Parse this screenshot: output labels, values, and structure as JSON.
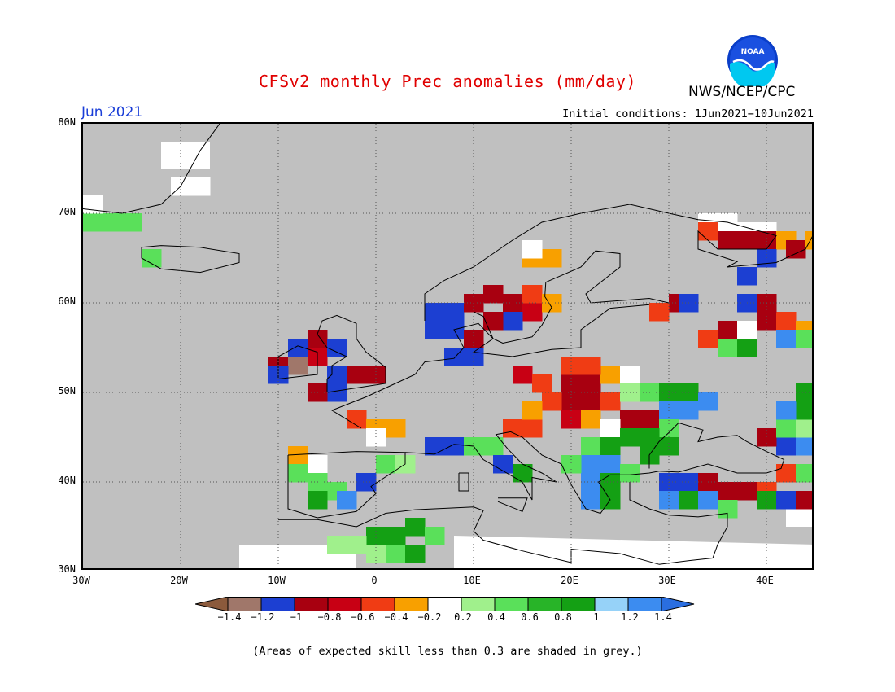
{
  "title": "CFSv2 monthly Prec anomalies (mm/day)",
  "agency": "NWS/NCEP/CPC",
  "logo_text": "NOAA",
  "month": "Jun 2021",
  "initial_conditions": "Initial conditions: 1Jun2021−10Jun2021",
  "footnote": "(Areas of expected skill less than 0.3 are shaded in grey.)",
  "map": {
    "lat_range": [
      30,
      80
    ],
    "lon_range": [
      -30,
      45
    ],
    "lat_labels": [
      "80N",
      "70N",
      "60N",
      "50N",
      "40N",
      "30N"
    ],
    "lon_labels": [
      "30W",
      "20W",
      "10W",
      "0",
      "10E",
      "20E",
      "30E",
      "40E"
    ],
    "background_color": "#c0c0c0",
    "grid": "dotted"
  },
  "colorbar": {
    "labels": [
      "−1.4",
      "−1.2",
      "−1",
      "−0.8",
      "−0.6",
      "−0.4",
      "−0.2",
      "0.2",
      "0.4",
      "0.6",
      "0.8",
      "1",
      "1.2",
      "1.4"
    ],
    "colors": [
      "#8b5a3c",
      "#a0776a",
      "#1c3fd2",
      "#a80010",
      "#c80014",
      "#f03c14",
      "#f8a000",
      "#ffffff",
      "#a0f08c",
      "#5ae05a",
      "#28b428",
      "#14a014",
      "#96d2f8",
      "#3c8cf0",
      "#2a6ee0"
    ]
  },
  "chart_data": {
    "type": "heatmap",
    "title": "CFSv2 monthly Prec anomalies (mm/day)",
    "units": "mm/day",
    "period": "Jun 2021",
    "cells": [
      {
        "lon": -29,
        "lat": 69,
        "v": 0.5
      },
      {
        "lon": -27,
        "lat": 69,
        "v": 0.5
      },
      {
        "lon": -25,
        "lat": 69,
        "v": 0.5
      },
      {
        "lon": -29,
        "lat": 71,
        "v": 0.0
      },
      {
        "lon": -20,
        "lat": 73,
        "v": 0.0
      },
      {
        "lon": -18,
        "lat": 73,
        "v": 0.0
      },
      {
        "lon": -23,
        "lat": 65,
        "v": 0.5
      },
      {
        "lon": -10,
        "lat": 53,
        "v": -1.0
      },
      {
        "lon": -8,
        "lat": 53,
        "v": -1.3
      },
      {
        "lon": -10,
        "lat": 52,
        "v": -1.1
      },
      {
        "lon": -8,
        "lat": 55,
        "v": -1.1
      },
      {
        "lon": -6,
        "lat": 56,
        "v": -0.9
      },
      {
        "lon": -6,
        "lat": 54,
        "v": -0.7
      },
      {
        "lon": -4,
        "lat": 55,
        "v": -1.1
      },
      {
        "lon": -4,
        "lat": 52,
        "v": -1.1
      },
      {
        "lon": -2,
        "lat": 52,
        "v": -0.9
      },
      {
        "lon": 0,
        "lat": 52,
        "v": -0.9
      },
      {
        "lon": -4,
        "lat": 50,
        "v": -1.1
      },
      {
        "lon": -6,
        "lat": 50,
        "v": -0.9
      },
      {
        "lon": -2,
        "lat": 47,
        "v": -0.6
      },
      {
        "lon": 0,
        "lat": 46,
        "v": -0.4
      },
      {
        "lon": 2,
        "lat": 46,
        "v": -0.4
      },
      {
        "lon": 0,
        "lat": 45,
        "v": 0.0
      },
      {
        "lon": -8,
        "lat": 43,
        "v": -0.4
      },
      {
        "lon": -6,
        "lat": 42,
        "v": 0.0
      },
      {
        "lon": -8,
        "lat": 41,
        "v": 0.5
      },
      {
        "lon": -6,
        "lat": 40,
        "v": 0.5
      },
      {
        "lon": -4,
        "lat": 39,
        "v": 0.5
      },
      {
        "lon": -6,
        "lat": 38,
        "v": 0.9
      },
      {
        "lon": -3,
        "lat": 38,
        "v": 1.2
      },
      {
        "lon": -1,
        "lat": 40,
        "v": -1.1
      },
      {
        "lon": 1,
        "lat": 42,
        "v": 0.5
      },
      {
        "lon": 3,
        "lat": 42,
        "v": 0.3
      },
      {
        "lon": 0,
        "lat": 34,
        "v": 0.9
      },
      {
        "lon": 2,
        "lat": 34,
        "v": 0.9
      },
      {
        "lon": 4,
        "lat": 35,
        "v": 0.9
      },
      {
        "lon": 6,
        "lat": 34,
        "v": 0.5
      },
      {
        "lon": -4,
        "lat": 33,
        "v": 0.3
      },
      {
        "lon": -2,
        "lat": 33,
        "v": 0.3
      },
      {
        "lon": 0,
        "lat": 32,
        "v": 0.3
      },
      {
        "lon": 2,
        "lat": 32,
        "v": 0.5
      },
      {
        "lon": 4,
        "lat": 32,
        "v": 0.9
      },
      {
        "lon": 6,
        "lat": 44,
        "v": -1.1
      },
      {
        "lon": 8,
        "lat": 44,
        "v": -1.1
      },
      {
        "lon": 10,
        "lat": 44,
        "v": 0.5
      },
      {
        "lon": 12,
        "lat": 44,
        "v": 0.5
      },
      {
        "lon": 13,
        "lat": 42,
        "v": -1.1
      },
      {
        "lon": 15,
        "lat": 41,
        "v": 0.9
      },
      {
        "lon": 14,
        "lat": 46,
        "v": -0.6
      },
      {
        "lon": 16,
        "lat": 46,
        "v": -0.6
      },
      {
        "lon": 6,
        "lat": 59,
        "v": -1.1
      },
      {
        "lon": 8,
        "lat": 59,
        "v": -1.1
      },
      {
        "lon": 6,
        "lat": 57,
        "v": -1.1
      },
      {
        "lon": 8,
        "lat": 57,
        "v": -1.1
      },
      {
        "lon": 10,
        "lat": 60,
        "v": -0.9
      },
      {
        "lon": 12,
        "lat": 61,
        "v": -0.9
      },
      {
        "lon": 14,
        "lat": 60,
        "v": -0.9
      },
      {
        "lon": 16,
        "lat": 59,
        "v": -0.7
      },
      {
        "lon": 14,
        "lat": 58,
        "v": -1.1
      },
      {
        "lon": 12,
        "lat": 58,
        "v": -0.9
      },
      {
        "lon": 10,
        "lat": 56,
        "v": -0.9
      },
      {
        "lon": 8,
        "lat": 54,
        "v": -1.1
      },
      {
        "lon": 10,
        "lat": 54,
        "v": -1.1
      },
      {
        "lon": 16,
        "lat": 61,
        "v": -0.6
      },
      {
        "lon": 18,
        "lat": 60,
        "v": -0.4
      },
      {
        "lon": 16,
        "lat": 65,
        "v": -0.4
      },
      {
        "lon": 18,
        "lat": 65,
        "v": -0.4
      },
      {
        "lon": 16,
        "lat": 66,
        "v": 0.0
      },
      {
        "lon": 15,
        "lat": 52,
        "v": -0.7
      },
      {
        "lon": 17,
        "lat": 51,
        "v": -0.6
      },
      {
        "lon": 20,
        "lat": 51,
        "v": -0.9
      },
      {
        "lon": 22,
        "lat": 51,
        "v": -0.9
      },
      {
        "lon": 20,
        "lat": 49,
        "v": -0.9
      },
      {
        "lon": 22,
        "lat": 49,
        "v": -0.9
      },
      {
        "lon": 24,
        "lat": 49,
        "v": -0.6
      },
      {
        "lon": 18,
        "lat": 49,
        "v": -0.6
      },
      {
        "lon": 16,
        "lat": 48,
        "v": -0.4
      },
      {
        "lon": 20,
        "lat": 47,
        "v": -0.7
      },
      {
        "lon": 22,
        "lat": 47,
        "v": -0.4
      },
      {
        "lon": 24,
        "lat": 52,
        "v": -0.4
      },
      {
        "lon": 26,
        "lat": 52,
        "v": 0.0
      },
      {
        "lon": 26,
        "lat": 47,
        "v": -0.9
      },
      {
        "lon": 28,
        "lat": 47,
        "v": -0.9
      },
      {
        "lon": 22,
        "lat": 53,
        "v": -0.6
      },
      {
        "lon": 20,
        "lat": 53,
        "v": -0.6
      },
      {
        "lon": 24,
        "lat": 46,
        "v": 0.0
      },
      {
        "lon": 26,
        "lat": 50,
        "v": 0.3
      },
      {
        "lon": 28,
        "lat": 50,
        "v": 0.5
      },
      {
        "lon": 30,
        "lat": 50,
        "v": 0.9
      },
      {
        "lon": 32,
        "lat": 50,
        "v": 0.9
      },
      {
        "lon": 30,
        "lat": 48,
        "v": 1.2
      },
      {
        "lon": 32,
        "lat": 48,
        "v": 1.3
      },
      {
        "lon": 34,
        "lat": 49,
        "v": 1.3
      },
      {
        "lon": 30,
        "lat": 46,
        "v": 0.5
      },
      {
        "lon": 28,
        "lat": 45,
        "v": 0.9
      },
      {
        "lon": 26,
        "lat": 45,
        "v": 0.9
      },
      {
        "lon": 22,
        "lat": 44,
        "v": 0.5
      },
      {
        "lon": 24,
        "lat": 44,
        "v": 0.9
      },
      {
        "lon": 22,
        "lat": 42,
        "v": 1.3
      },
      {
        "lon": 24,
        "lat": 42,
        "v": 1.3
      },
      {
        "lon": 20,
        "lat": 42,
        "v": 0.5
      },
      {
        "lon": 22,
        "lat": 40,
        "v": 1.3
      },
      {
        "lon": 24,
        "lat": 40,
        "v": 0.9
      },
      {
        "lon": 22,
        "lat": 38,
        "v": 1.3
      },
      {
        "lon": 24,
        "lat": 38,
        "v": 0.9
      },
      {
        "lon": 26,
        "lat": 41,
        "v": 0.5
      },
      {
        "lon": 28,
        "lat": 43,
        "v": 0.9
      },
      {
        "lon": 30,
        "lat": 44,
        "v": 0.9
      },
      {
        "lon": 30,
        "lat": 40,
        "v": -1.1
      },
      {
        "lon": 32,
        "lat": 40,
        "v": -1.1
      },
      {
        "lon": 34,
        "lat": 40,
        "v": -0.9
      },
      {
        "lon": 36,
        "lat": 39,
        "v": -0.9
      },
      {
        "lon": 38,
        "lat": 39,
        "v": -0.9
      },
      {
        "lon": 40,
        "lat": 39,
        "v": -0.6
      },
      {
        "lon": 30,
        "lat": 38,
        "v": 1.3
      },
      {
        "lon": 32,
        "lat": 38,
        "v": 0.9
      },
      {
        "lon": 34,
        "lat": 38,
        "v": 1.2
      },
      {
        "lon": 36,
        "lat": 37,
        "v": 0.5
      },
      {
        "lon": 40,
        "lat": 38,
        "v": 0.9
      },
      {
        "lon": 42,
        "lat": 38,
        "v": -1.1
      },
      {
        "lon": 44,
        "lat": 38,
        "v": -0.9
      },
      {
        "lon": 42,
        "lat": 41,
        "v": -0.6
      },
      {
        "lon": 44,
        "lat": 41,
        "v": 0.5
      },
      {
        "lon": 42,
        "lat": 44,
        "v": -1.1
      },
      {
        "lon": 44,
        "lat": 44,
        "v": 1.3
      },
      {
        "lon": 40,
        "lat": 45,
        "v": -0.9
      },
      {
        "lon": 42,
        "lat": 46,
        "v": 0.5
      },
      {
        "lon": 44,
        "lat": 46,
        "v": 0.3
      },
      {
        "lon": 44,
        "lat": 48,
        "v": 0.9
      },
      {
        "lon": 42,
        "lat": 48,
        "v": 1.3
      },
      {
        "lon": 44,
        "lat": 50,
        "v": 0.9
      },
      {
        "lon": 34,
        "lat": 56,
        "v": -0.6
      },
      {
        "lon": 36,
        "lat": 57,
        "v": -0.9
      },
      {
        "lon": 38,
        "lat": 57,
        "v": 0.0
      },
      {
        "lon": 40,
        "lat": 58,
        "v": -0.9
      },
      {
        "lon": 42,
        "lat": 58,
        "v": -0.6
      },
      {
        "lon": 44,
        "lat": 57,
        "v": -0.4
      },
      {
        "lon": 38,
        "lat": 60,
        "v": -1.1
      },
      {
        "lon": 40,
        "lat": 60,
        "v": -0.9
      },
      {
        "lon": 36,
        "lat": 55,
        "v": 0.5
      },
      {
        "lon": 38,
        "lat": 55,
        "v": 0.9
      },
      {
        "lon": 42,
        "lat": 56,
        "v": 1.2
      },
      {
        "lon": 44,
        "lat": 56,
        "v": 0.5
      },
      {
        "lon": 31,
        "lat": 60,
        "v": -0.9
      },
      {
        "lon": 29,
        "lat": 59,
        "v": -0.6
      },
      {
        "lon": 32,
        "lat": 60,
        "v": -1.1
      },
      {
        "lon": 34,
        "lat": 69,
        "v": 0.0
      },
      {
        "lon": 36,
        "lat": 69,
        "v": 0.0
      },
      {
        "lon": 38,
        "lat": 68,
        "v": 0.0
      },
      {
        "lon": 40,
        "lat": 68,
        "v": 0.0
      },
      {
        "lon": 34,
        "lat": 68,
        "v": -0.6
      },
      {
        "lon": 36,
        "lat": 67,
        "v": -0.9
      },
      {
        "lon": 38,
        "lat": 67,
        "v": -0.9
      },
      {
        "lon": 40,
        "lat": 67,
        "v": -0.9
      },
      {
        "lon": 42,
        "lat": 67,
        "v": -0.4
      },
      {
        "lon": 40,
        "lat": 65,
        "v": -1.1
      },
      {
        "lon": 43,
        "lat": 66,
        "v": -0.9
      },
      {
        "lon": 38,
        "lat": 63,
        "v": -1.1
      },
      {
        "lon": 45,
        "lat": 67,
        "v": -0.4
      }
    ],
    "white_regions": [
      [
        [
          -22,
          78
        ],
        [
          -17,
          78
        ],
        [
          -17,
          75
        ],
        [
          -22,
          75
        ]
      ],
      [
        [
          -14,
          33
        ],
        [
          -2,
          33
        ],
        [
          -2,
          30
        ],
        [
          -14,
          30
        ]
      ],
      [
        [
          8,
          34
        ],
        [
          45,
          33
        ],
        [
          45,
          30
        ],
        [
          8,
          30
        ]
      ],
      [
        [
          42,
          38
        ],
        [
          45,
          38
        ],
        [
          45,
          35
        ],
        [
          42,
          35
        ]
      ]
    ]
  }
}
